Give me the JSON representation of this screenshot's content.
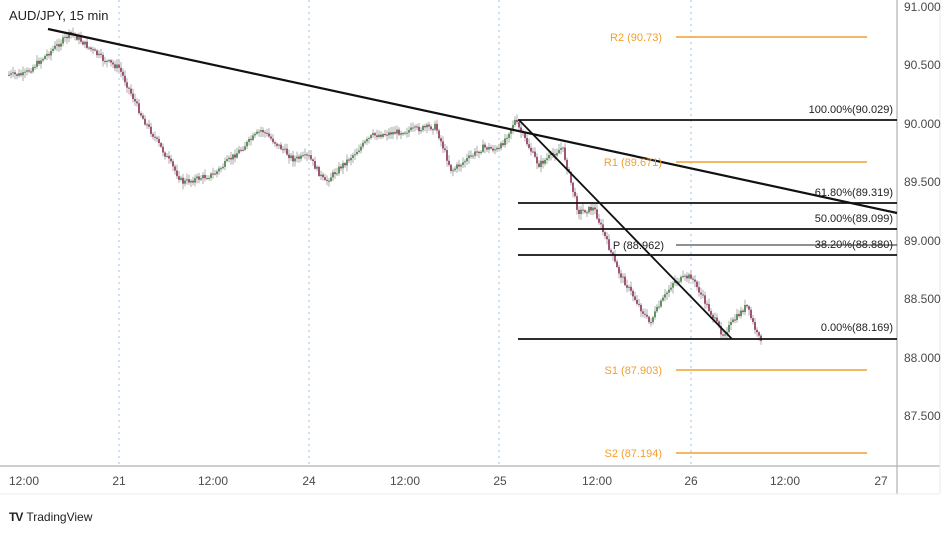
{
  "chart_data": {
    "type": "candlestick",
    "title": "AUD/JPY, 15 min",
    "symbol": "AUD/JPY",
    "interval": "15 min",
    "xlabel": "",
    "ylabel": "",
    "ylim": [
      87.0,
      91.0
    ],
    "grid": false,
    "x_tick_labels": [
      "12:00",
      "21",
      "12:00",
      "24",
      "12:00",
      "25",
      "12:00",
      "26",
      "12:00",
      "27"
    ],
    "y_tick_labels": [
      "91.000",
      "90.500",
      "90.000",
      "89.500",
      "89.000",
      "88.500",
      "88.000",
      "87.500"
    ],
    "approx_price_path": [
      {
        "t": "20 12:00",
        "price": 90.42
      },
      {
        "t": "20 18:00",
        "price": 90.78
      },
      {
        "t": "20 22:00",
        "price": 90.55
      },
      {
        "t": "21 00:00",
        "price": 90.48
      },
      {
        "t": "21 03:00",
        "price": 90.05
      },
      {
        "t": "21 08:00",
        "price": 89.5
      },
      {
        "t": "21 12:00",
        "price": 89.57
      },
      {
        "t": "21 18:00",
        "price": 89.95
      },
      {
        "t": "21 22:00",
        "price": 89.7
      },
      {
        "t": "24 00:00",
        "price": 89.72
      },
      {
        "t": "24 02:00",
        "price": 89.5
      },
      {
        "t": "24 08:00",
        "price": 89.9
      },
      {
        "t": "24 16:00",
        "price": 89.98
      },
      {
        "t": "24 18:00",
        "price": 89.6
      },
      {
        "t": "24 22:00",
        "price": 89.8
      },
      {
        "t": "25 00:00",
        "price": 89.78
      },
      {
        "t": "25 02:00",
        "price": 90.03
      },
      {
        "t": "25 05:00",
        "price": 89.65
      },
      {
        "t": "25 08:00",
        "price": 89.8
      },
      {
        "t": "25 10:00",
        "price": 89.25
      },
      {
        "t": "25 12:00",
        "price": 89.28
      },
      {
        "t": "25 15:00",
        "price": 88.75
      },
      {
        "t": "25 19:00",
        "price": 88.3
      },
      {
        "t": "25 22:00",
        "price": 88.65
      },
      {
        "t": "26 00:00",
        "price": 88.7
      },
      {
        "t": "26 04:00",
        "price": 88.2
      },
      {
        "t": "26 07:00",
        "price": 88.45
      },
      {
        "t": "26 08:30",
        "price": 88.17
      }
    ],
    "trendlines": [
      {
        "name": "Descending resistance",
        "from": {
          "t": "20 18:00",
          "price": 90.8
        },
        "to": {
          "t": "27 00:00",
          "price": 89.25
        }
      },
      {
        "name": "Fib swing line",
        "from": {
          "t": "25 02:00",
          "price": 90.03
        },
        "to": {
          "t": "26 05:00",
          "price": 88.17
        }
      }
    ],
    "fibonacci": [
      {
        "level": "100.00%",
        "price": 90.029
      },
      {
        "level": "61.80%",
        "price": 89.319
      },
      {
        "level": "50.00%",
        "price": 89.099
      },
      {
        "level": "38.20%",
        "price": 88.88
      },
      {
        "level": "0.00%",
        "price": 88.169
      }
    ],
    "pivots": [
      {
        "name": "R2",
        "price": 90.73
      },
      {
        "name": "R1",
        "price": 89.671
      },
      {
        "name": "P",
        "price": 88.962
      },
      {
        "name": "S1",
        "price": 87.903
      },
      {
        "name": "S2",
        "price": 87.194
      }
    ],
    "colors": {
      "up_candle": "#3c7a3c",
      "down_candle": "#8b2a55",
      "wick": "#9a9a9a",
      "pivot_line": "#f0a030",
      "fib_line": "#111111",
      "trendline": "#111111",
      "session_divider": "#9fc3e6"
    }
  },
  "header": {
    "title": "AUD/JPY, 15 min"
  },
  "axes": {
    "y": [
      "91.000",
      "90.500",
      "90.000",
      "89.500",
      "89.000",
      "88.500",
      "88.000",
      "87.500"
    ],
    "x": [
      "12:00",
      "21",
      "12:00",
      "24",
      "12:00",
      "25",
      "12:00",
      "26",
      "12:00",
      "27"
    ]
  },
  "labels": {
    "r2": "R2 (90.73)",
    "r1": "R1 (89.671)",
    "p": "P (88.962)",
    "s1": "S1 (87.903)",
    "s2": "S2 (87.194)",
    "fib100": "100.00%(90.029)",
    "fib618": "61.80%(89.319)",
    "fib50": "50.00%(89.099)",
    "fib382": "38.20%(88.880)",
    "fib0": "0.00%(88.169)"
  },
  "footer": {
    "brand": "TradingView",
    "logo": "TV"
  }
}
